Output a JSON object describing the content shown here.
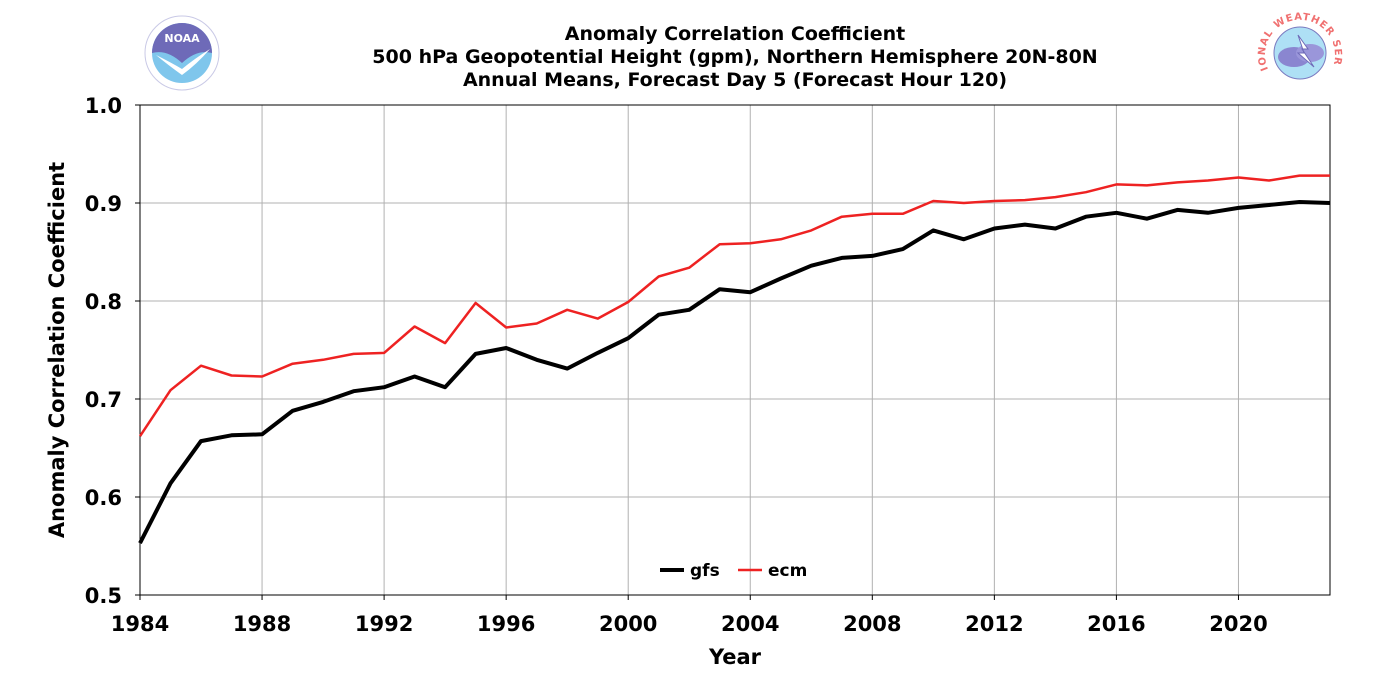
{
  "chart_data": {
    "type": "line",
    "title": [
      "Anomaly Correlation Coefficient",
      "500 hPa Geopotential Height (gpm), Northern Hemisphere 20N-80N",
      "Annual Means, Forecast Day 5 (Forecast Hour 120)"
    ],
    "xlabel": "Year",
    "ylabel": "Anomaly Correlation Coefficient",
    "xlim": [
      1984,
      2023
    ],
    "ylim": [
      0.5,
      1.0
    ],
    "xticks": [
      "1984",
      "1988",
      "1992",
      "1996",
      "2000",
      "2004",
      "2008",
      "2012",
      "2016",
      "2020"
    ],
    "yticks": [
      "0.5",
      "0.6",
      "0.7",
      "0.8",
      "0.9",
      "1.0"
    ],
    "grid": true,
    "legend_position": "bottom-center",
    "x": [
      1984,
      1985,
      1986,
      1987,
      1988,
      1989,
      1990,
      1991,
      1992,
      1993,
      1994,
      1995,
      1996,
      1997,
      1998,
      1999,
      2000,
      2001,
      2002,
      2003,
      2004,
      2005,
      2006,
      2007,
      2008,
      2009,
      2010,
      2011,
      2012,
      2013,
      2014,
      2015,
      2016,
      2017,
      2018,
      2019,
      2020,
      2021,
      2022,
      2023
    ],
    "series": [
      {
        "name": "gfs",
        "color": "#000000",
        "values": [
          0.553,
          0.614,
          0.657,
          0.663,
          0.664,
          0.688,
          0.697,
          0.708,
          0.712,
          0.723,
          0.712,
          0.746,
          0.752,
          0.74,
          0.731,
          0.747,
          0.762,
          0.786,
          0.791,
          0.812,
          0.809,
          0.823,
          0.836,
          0.844,
          0.846,
          0.853,
          0.872,
          0.863,
          0.874,
          0.878,
          0.874,
          0.886,
          0.89,
          0.884,
          0.893,
          0.89,
          0.895,
          0.898,
          0.901,
          0.9
        ]
      },
      {
        "name": "ecm",
        "color": "#ee2222",
        "values": [
          0.662,
          0.709,
          0.734,
          0.724,
          0.723,
          0.736,
          0.74,
          0.746,
          0.747,
          0.774,
          0.757,
          0.798,
          0.773,
          0.777,
          0.791,
          0.782,
          0.799,
          0.825,
          0.834,
          0.858,
          0.859,
          0.863,
          0.872,
          0.886,
          0.889,
          0.889,
          0.902,
          0.9,
          0.902,
          0.903,
          0.906,
          0.911,
          0.919,
          0.918,
          0.921,
          0.923,
          0.926,
          0.923,
          0.928,
          0.928
        ]
      }
    ]
  },
  "logos": {
    "left": {
      "icon": "noaa-logo",
      "text": "NOAA"
    },
    "right": {
      "icon": "nws-logo",
      "text": "NATIONAL WEATHER SERVICE"
    }
  }
}
